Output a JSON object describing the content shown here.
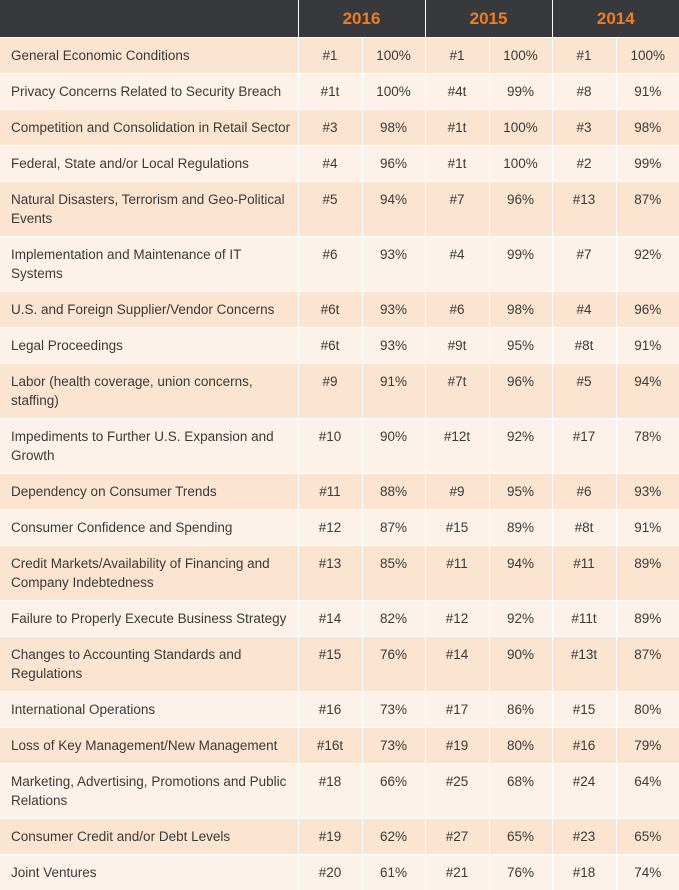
{
  "columns": [
    {
      "year": "2016"
    },
    {
      "year": "2015"
    },
    {
      "year": "2014"
    }
  ],
  "rows": [
    {
      "label": "General Economic Conditions",
      "r2016": "#1",
      "p2016": "100%",
      "r2015": "#1",
      "p2015": "100%",
      "r2014": "#1",
      "p2014": "100%"
    },
    {
      "label": "Privacy Concerns Related to Security Breach",
      "r2016": "#1t",
      "p2016": "100%",
      "r2015": "#4t",
      "p2015": "99%",
      "r2014": "#8",
      "p2014": "91%"
    },
    {
      "label": "Competition and Consolidation in Retail Sector",
      "r2016": "#3",
      "p2016": "98%",
      "r2015": "#1t",
      "p2015": "100%",
      "r2014": "#3",
      "p2014": "98%"
    },
    {
      "label": "Federal, State and/or Local Regulations",
      "r2016": "#4",
      "p2016": "96%",
      "r2015": "#1t",
      "p2015": "100%",
      "r2014": "#2",
      "p2014": "99%"
    },
    {
      "label": "Natural Disasters, Terrorism and Geo-Political Events",
      "r2016": "#5",
      "p2016": "94%",
      "r2015": "#7",
      "p2015": "96%",
      "r2014": "#13",
      "p2014": "87%"
    },
    {
      "label": "Implementation and Maintenance of IT Systems",
      "r2016": "#6",
      "p2016": "93%",
      "r2015": "#4",
      "p2015": "99%",
      "r2014": "#7",
      "p2014": "92%"
    },
    {
      "label": "U.S. and Foreign Supplier/Vendor Concerns",
      "r2016": "#6t",
      "p2016": "93%",
      "r2015": "#6",
      "p2015": "98%",
      "r2014": "#4",
      "p2014": "96%"
    },
    {
      "label": "Legal Proceedings",
      "r2016": "#6t",
      "p2016": "93%",
      "r2015": "#9t",
      "p2015": "95%",
      "r2014": "#8t",
      "p2014": "91%"
    },
    {
      "label": "Labor (health coverage, union concerns, staffing)",
      "r2016": "#9",
      "p2016": "91%",
      "r2015": "#7t",
      "p2015": "96%",
      "r2014": "#5",
      "p2014": "94%"
    },
    {
      "label": "Impediments to Further U.S. Expansion and Growth",
      "r2016": "#10",
      "p2016": "90%",
      "r2015": "#12t",
      "p2015": "92%",
      "r2014": "#17",
      "p2014": "78%"
    },
    {
      "label": "Dependency on Consumer Trends",
      "r2016": "#11",
      "p2016": "88%",
      "r2015": "#9",
      "p2015": "95%",
      "r2014": "#6",
      "p2014": "93%"
    },
    {
      "label": "Consumer Confidence and Spending",
      "r2016": "#12",
      "p2016": "87%",
      "r2015": "#15",
      "p2015": "89%",
      "r2014": "#8t",
      "p2014": "91%"
    },
    {
      "label": "Credit Markets/Availability of Financing and Company Indebtedness",
      "r2016": "#13",
      "p2016": "85%",
      "r2015": "#11",
      "p2015": "94%",
      "r2014": "#11",
      "p2014": "89%"
    },
    {
      "label": "Failure to Properly Execute Business Strategy",
      "r2016": "#14",
      "p2016": "82%",
      "r2015": "#12",
      "p2015": "92%",
      "r2014": "#11t",
      "p2014": "89%"
    },
    {
      "label": "Changes to Accounting Standards and Regulations",
      "r2016": "#15",
      "p2016": "76%",
      "r2015": "#14",
      "p2015": "90%",
      "r2014": "#13t",
      "p2014": "87%"
    },
    {
      "label": "International Operations",
      "r2016": "#16",
      "p2016": "73%",
      "r2015": "#17",
      "p2015": "86%",
      "r2014": "#15",
      "p2014": "80%"
    },
    {
      "label": "Loss of Key Management/New Management",
      "r2016": "#16t",
      "p2016": "73%",
      "r2015": "#19",
      "p2015": "80%",
      "r2014": "#16",
      "p2014": "79%"
    },
    {
      "label": "Marketing, Advertising, Promotions and Public Relations",
      "r2016": "#18",
      "p2016": "66%",
      "r2015": "#25",
      "p2015": "68%",
      "r2014": "#24",
      "p2014": "64%"
    },
    {
      "label": "Consumer Credit and/or Debt Levels",
      "r2016": "#19",
      "p2016": "62%",
      "r2015": "#27",
      "p2015": "65%",
      "r2014": "#23",
      "p2014": "65%"
    },
    {
      "label": "Joint Ventures",
      "r2016": "#20",
      "p2016": "61%",
      "r2015": "#21",
      "p2015": "76%",
      "r2014": "#18",
      "p2014": "74%"
    }
  ],
  "colors": {
    "header_bg": "#38393d",
    "header_text": "#ee7d24",
    "row_dark": "#fbe4d0",
    "row_light": "#fdf2e9",
    "text": "#3a3a3a"
  }
}
